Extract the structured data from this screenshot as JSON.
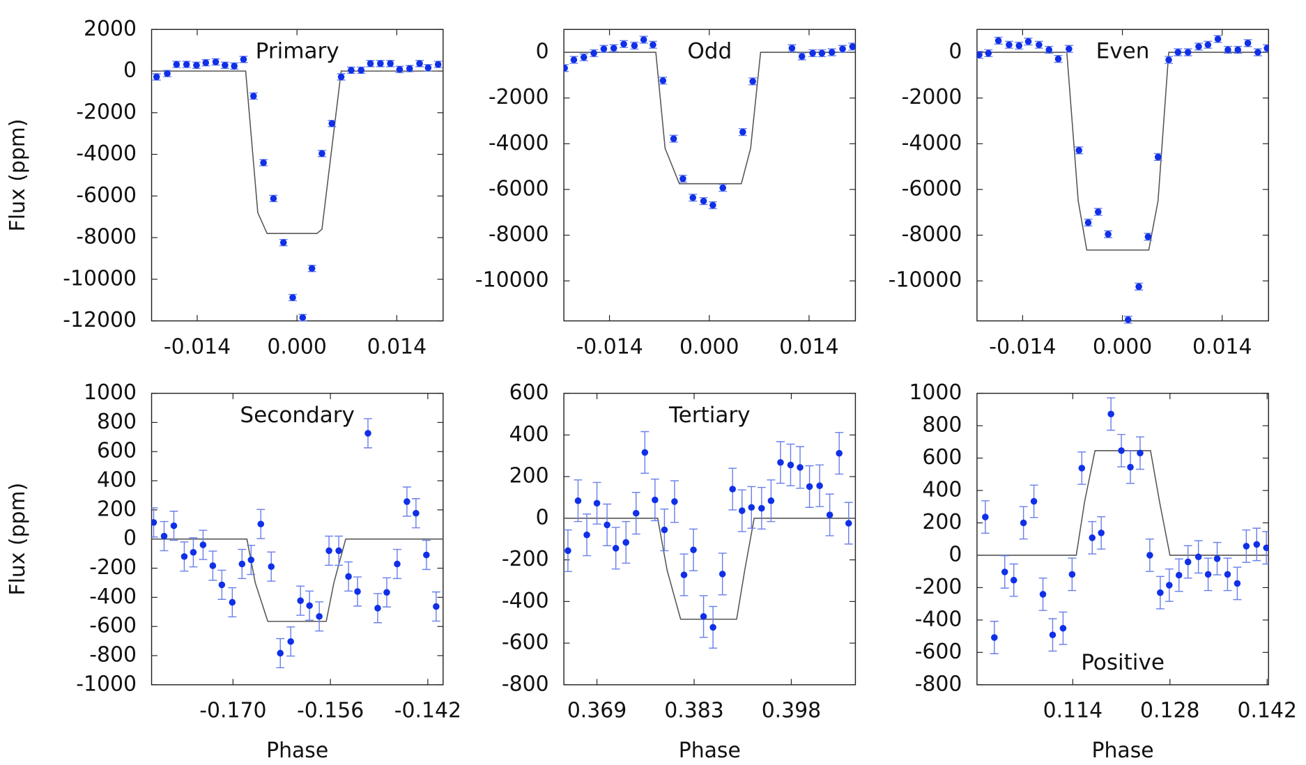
{
  "chart_data": [
    {
      "type": "scatter",
      "title": "Primary",
      "title_loc": "top",
      "ylabel": "Flux (ppm)",
      "color": "#1030e8",
      "error_color": "#6a80ea",
      "x": [
        -0.0197,
        -0.0182,
        -0.0169,
        -0.0155,
        -0.0141,
        -0.0128,
        -0.0114,
        -0.0101,
        -0.0088,
        -0.0075,
        -0.0061,
        -0.0047,
        -0.0033,
        -0.0019,
        -0.0006,
        0.0008,
        0.0021,
        0.0035,
        0.0049,
        0.0062,
        0.0076,
        0.009,
        0.0103,
        0.0117,
        0.0131,
        0.0144,
        0.0158,
        0.0172,
        0.0184,
        0.0198
      ],
      "values": [
        -280,
        -120,
        320,
        320,
        280,
        400,
        440,
        280,
        240,
        560,
        -1200,
        -4400,
        -6120,
        -8240,
        -10880,
        -11840,
        -9480,
        -3960,
        -2520,
        -280,
        40,
        40,
        360,
        360,
        360,
        80,
        120,
        360,
        160,
        320
      ],
      "errors": [
        150,
        150,
        150,
        150,
        150,
        150,
        150,
        150,
        150,
        150,
        150,
        150,
        150,
        150,
        150,
        150,
        150,
        150,
        150,
        150,
        150,
        150,
        150,
        150,
        150,
        150,
        150,
        150,
        150,
        150
      ],
      "model": {
        "color": "#555555",
        "x": [
          -0.0204,
          -0.0072,
          -0.0055,
          -0.0042,
          0.0028,
          0.0035,
          0.0062,
          0.0204
        ],
        "values": [
          0,
          0,
          -6800,
          -7800,
          -7800,
          -7600,
          0,
          0
        ]
      },
      "xlim": [
        -0.0204,
        0.0205
      ],
      "ylim": [
        -12000,
        2000
      ],
      "xticks": [
        -0.014,
        {
          "value": 0,
          "label": "0.000"
        },
        0.014
      ],
      "yticks": [
        2000,
        0,
        -2000,
        -4000,
        -6000,
        -8000,
        -10000,
        -12000
      ]
    },
    {
      "type": "scatter",
      "title": "Odd",
      "title_loc": "top",
      "color": "#1030e8",
      "error_color": "#6a80ea",
      "x": [
        -0.0203,
        -0.019,
        -0.0176,
        -0.0162,
        -0.0148,
        -0.0134,
        -0.012,
        -0.0105,
        -0.0092,
        -0.0079,
        -0.0065,
        -0.005,
        -0.0037,
        -0.0023,
        -0.0008,
        0.0005,
        0.0019,
        0.0047,
        0.0061,
        0.0116,
        0.013,
        0.0145,
        0.0158,
        0.0172,
        0.0187,
        0.0201
      ],
      "values": [
        -690,
        -330,
        -220,
        -40,
        150,
        180,
        360,
        290,
        550,
        330,
        -1240,
        -3780,
        -5530,
        -6360,
        -6510,
        -6690,
        -5930,
        -3490,
        -1270,
        180,
        -180,
        -40,
        -40,
        0,
        150,
        250
      ],
      "errors": [
        150,
        150,
        150,
        150,
        150,
        150,
        150,
        150,
        150,
        150,
        150,
        150,
        150,
        150,
        150,
        150,
        150,
        150,
        150,
        150,
        150,
        150,
        150,
        150,
        150,
        150
      ],
      "model": {
        "color": "#555555",
        "x": [
          -0.0204,
          -0.0075,
          -0.0062,
          -0.0042,
          0.0045,
          0.0058,
          0.0072,
          0.0204
        ],
        "values": [
          0,
          0,
          -4200,
          -5750,
          -5750,
          -4200,
          0,
          0
        ]
      },
      "xlim": [
        -0.0204,
        0.0205
      ],
      "ylim": [
        -11750,
        1000
      ],
      "xticks": [
        -0.014,
        {
          "value": 0,
          "label": "0.000"
        },
        0.014
      ],
      "yticks": [
        0,
        -2000,
        -4000,
        -6000,
        -8000,
        -10000
      ]
    },
    {
      "type": "scatter",
      "title": "Even",
      "title_loc": "top",
      "color": "#1030e8",
      "error_color": "#6a80ea",
      "x": [
        -0.0201,
        -0.0188,
        -0.0174,
        -0.0159,
        -0.0145,
        -0.0132,
        -0.0117,
        -0.0103,
        -0.009,
        -0.0075,
        -0.0061,
        -0.0048,
        -0.0034,
        -0.002,
        0.0008,
        0.0023,
        0.0036,
        0.005,
        0.0065,
        0.0078,
        0.0092,
        0.0107,
        0.012,
        0.0134,
        0.0148,
        0.0162,
        0.0176,
        0.019,
        0.0203
      ],
      "values": [
        -110,
        -40,
        510,
        330,
        290,
        470,
        330,
        110,
        -290,
        150,
        -4290,
        -7450,
        -6980,
        -7960,
        -11700,
        -10250,
        -8070,
        -4580,
        -330,
        0,
        0,
        250,
        330,
        580,
        110,
        110,
        400,
        0,
        180
      ],
      "errors": [
        150,
        150,
        150,
        150,
        150,
        150,
        150,
        150,
        150,
        150,
        150,
        150,
        150,
        150,
        150,
        150,
        150,
        150,
        150,
        150,
        150,
        150,
        150,
        150,
        150,
        150,
        150,
        150,
        150
      ],
      "model": {
        "color": "#555555",
        "x": [
          -0.0204,
          -0.0078,
          -0.0062,
          -0.005,
          0.0037,
          0.005,
          0.0065,
          0.0204
        ],
        "values": [
          0,
          0,
          -6500,
          -8650,
          -8650,
          -6500,
          0,
          0
        ]
      },
      "xlim": [
        -0.0204,
        0.0205
      ],
      "ylim": [
        -11750,
        1000
      ],
      "xticks": [
        -0.014,
        {
          "value": 0,
          "label": "0.000"
        },
        0.014
      ],
      "yticks": [
        0,
        -2000,
        -4000,
        -6000,
        -8000,
        -10000
      ]
    },
    {
      "type": "scatter",
      "title": "Secondary",
      "title_loc": "top",
      "ylabel": "Flux (ppm)",
      "xlabel": "Phase",
      "color": "#1030e8",
      "error_color": "#6a80ea",
      "x": [
        -0.1814,
        -0.1799,
        -0.1785,
        -0.177,
        -0.1757,
        -0.1743,
        -0.1729,
        -0.1716,
        -0.1701,
        -0.1687,
        -0.1674,
        -0.166,
        -0.1645,
        -0.1632,
        -0.1617,
        -0.1603,
        -0.159,
        -0.1576,
        -0.1562,
        -0.1548,
        -0.1534,
        -0.1521,
        -0.1506,
        -0.1492,
        -0.1479,
        -0.1464,
        -0.145,
        -0.1437,
        -0.1422,
        -0.1408
      ],
      "values": [
        114,
        20,
        91,
        -120,
        -91,
        -40,
        -183,
        -314,
        -434,
        -171,
        -143,
        103,
        -189,
        -783,
        -703,
        -423,
        -457,
        -531,
        -80,
        -80,
        -257,
        -360,
        726,
        -474,
        -366,
        -171,
        257,
        177,
        -109,
        -463
      ],
      "errors": [
        100,
        100,
        100,
        100,
        100,
        100,
        100,
        100,
        100,
        100,
        100,
        100,
        100,
        100,
        100,
        100,
        100,
        100,
        100,
        100,
        100,
        100,
        100,
        100,
        100,
        100,
        100,
        100,
        100,
        100
      ],
      "model": {
        "color": "#555555",
        "x": [
          -0.1817,
          -0.168,
          -0.1668,
          -0.165,
          -0.1566,
          -0.1555,
          -0.1538,
          -0.1398
        ],
        "values": [
          0,
          0,
          -300,
          -565,
          -565,
          -300,
          0,
          0
        ]
      },
      "xlim": [
        -0.1817,
        -0.1398
      ],
      "ylim": [
        -1000,
        1000
      ],
      "xticks": [
        {
          "value": -0.17,
          "label": "-0.170"
        },
        -0.156,
        -0.142
      ],
      "yticks": [
        1000,
        800,
        600,
        400,
        200,
        0,
        -200,
        -400,
        -600,
        -800,
        -1000
      ]
    },
    {
      "type": "scatter",
      "title": "Tertiary",
      "title_loc": "top",
      "xlabel": "Phase",
      "color": "#1030e8",
      "error_color": "#6a80ea",
      "x": [
        0.3645,
        0.366,
        0.3673,
        0.3688,
        0.3703,
        0.3716,
        0.3731,
        0.3746,
        0.3759,
        0.3774,
        0.3788,
        0.3803,
        0.3817,
        0.3831,
        0.3846,
        0.386,
        0.3874,
        0.3889,
        0.3903,
        0.3917,
        0.3932,
        0.3946,
        0.396,
        0.3975,
        0.3989,
        0.4003,
        0.4018,
        0.4033,
        0.4047,
        0.4061
      ],
      "values": [
        -156,
        84,
        -80,
        72,
        -32,
        -144,
        -116,
        24,
        316,
        88,
        -56,
        80,
        -272,
        -152,
        -472,
        -524,
        -268,
        140,
        36,
        52,
        48,
        84,
        268,
        256,
        244,
        152,
        156,
        16,
        312,
        -24
      ],
      "errors": [
        100,
        100,
        100,
        100,
        100,
        100,
        100,
        100,
        100,
        100,
        100,
        100,
        100,
        100,
        100,
        100,
        100,
        100,
        100,
        100,
        100,
        100,
        100,
        100,
        100,
        100,
        100,
        100,
        100,
        100
      ],
      "model": {
        "color": "#555555",
        "x": [
          0.3639,
          0.3778,
          0.3792,
          0.3812,
          0.3895,
          0.3907,
          0.3921,
          0.4071
        ],
        "values": [
          0,
          0,
          -250,
          -485,
          -485,
          -250,
          0,
          0
        ]
      },
      "xlim": [
        0.3639,
        0.4071
      ],
      "ylim": [
        -800,
        600
      ],
      "xticks": [
        {
          "value": 0.3688,
          "label": "0.369"
        },
        {
          "value": 0.3832,
          "label": "0.383"
        },
        {
          "value": 0.3976,
          "label": "0.398"
        }
      ],
      "yticks": [
        600,
        400,
        200,
        0,
        -200,
        -400,
        -600,
        -800
      ]
    },
    {
      "type": "scatter",
      "title": "Positive",
      "title_loc": "bottom",
      "xlabel": "Phase",
      "color": "#1030e8",
      "error_color": "#6a80ea",
      "x": [
        0.1014,
        0.1027,
        0.1042,
        0.1055,
        0.1069,
        0.1084,
        0.1097,
        0.1111,
        0.1126,
        0.1139,
        0.1153,
        0.1168,
        0.1181,
        0.1195,
        0.121,
        0.1223,
        0.1237,
        0.1251,
        0.1266,
        0.1279,
        0.1293,
        0.1306,
        0.1321,
        0.1335,
        0.1348,
        0.1363,
        0.1377,
        0.139,
        0.1405,
        0.1419
      ],
      "values": [
        236,
        -508,
        -103,
        -154,
        200,
        333,
        -241,
        -492,
        -451,
        -118,
        538,
        108,
        138,
        872,
        646,
        544,
        631,
        0,
        -231,
        -185,
        -123,
        -41,
        -10,
        -118,
        -21,
        -118,
        -174,
        56,
        67,
        46
      ],
      "errors": [
        100,
        100,
        100,
        100,
        100,
        100,
        100,
        100,
        100,
        100,
        100,
        100,
        100,
        100,
        100,
        100,
        100,
        100,
        100,
        100,
        100,
        100,
        100,
        100,
        100,
        100,
        100,
        100,
        100,
        100
      ],
      "model": {
        "color": "#555555",
        "x": [
          0.1002,
          0.1145,
          0.1157,
          0.1172,
          0.1252,
          0.1265,
          0.128,
          0.1422
        ],
        "values": [
          0,
          0,
          330,
          646,
          646,
          330,
          0,
          0
        ]
      },
      "xlim": [
        0.1002,
        0.1422
      ],
      "ylim": [
        -800,
        1000
      ],
      "xticks": [
        0.114,
        0.128,
        0.142
      ],
      "yticks": [
        1000,
        800,
        600,
        400,
        200,
        0,
        -200,
        -400,
        -600,
        -800
      ]
    }
  ]
}
